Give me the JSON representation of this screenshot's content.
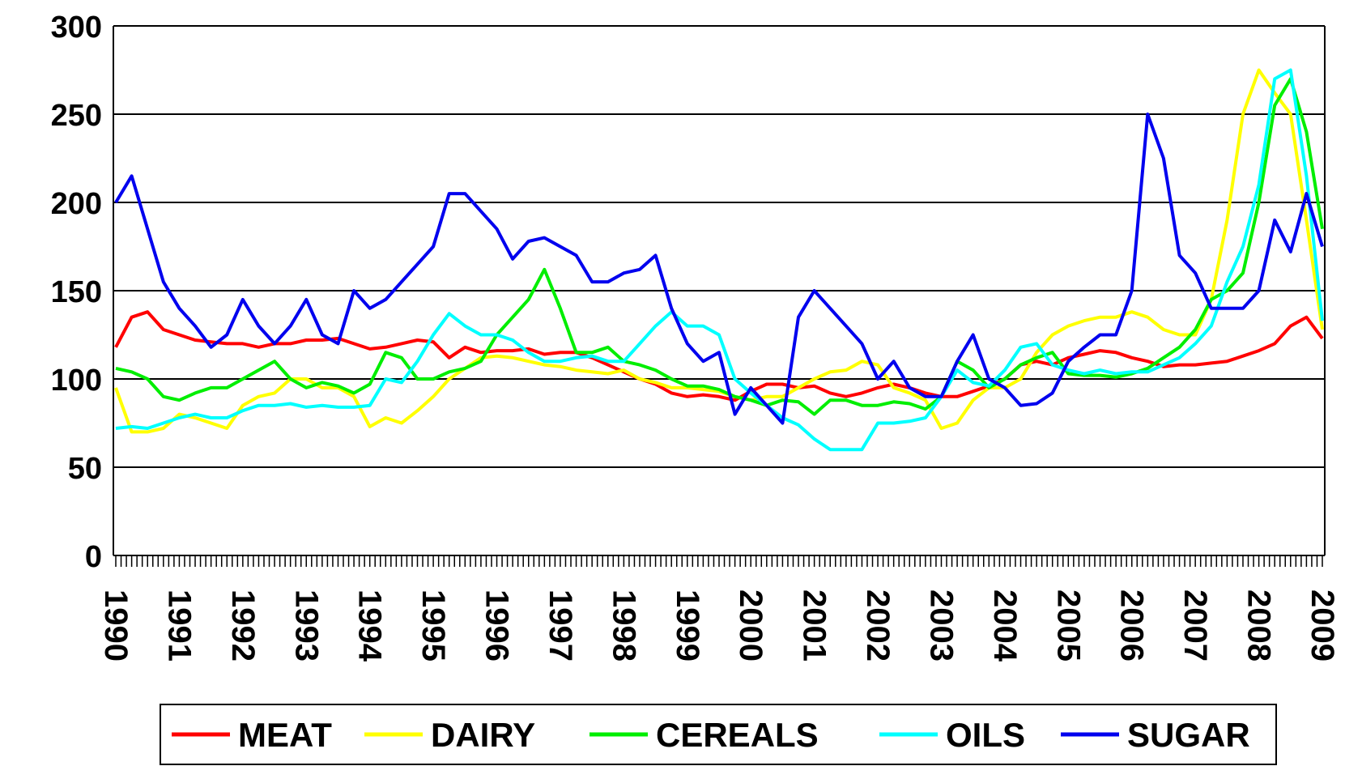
{
  "chart_data": {
    "type": "line",
    "categories": [
      "1990",
      null,
      null,
      null,
      "1991",
      null,
      null,
      null,
      "1992",
      null,
      null,
      null,
      "1993",
      null,
      null,
      null,
      "1994",
      null,
      null,
      null,
      "1995",
      null,
      null,
      null,
      "1996",
      null,
      null,
      null,
      "1997",
      null,
      null,
      null,
      "1998",
      null,
      null,
      null,
      "1999",
      null,
      null,
      null,
      "2000",
      null,
      null,
      null,
      "2001",
      null,
      null,
      null,
      "2002",
      null,
      null,
      null,
      "2003",
      null,
      null,
      null,
      "2004",
      null,
      null,
      null,
      "2005",
      null,
      null,
      null,
      "2006",
      null,
      null,
      null,
      "2007",
      null,
      null,
      null,
      "2008",
      null,
      null,
      null,
      "2009"
    ],
    "series": [
      {
        "name": "MEAT",
        "color": "#ff0000",
        "values": [
          118,
          135,
          138,
          128,
          125,
          122,
          121,
          120,
          120,
          118,
          120,
          120,
          122,
          122,
          123,
          120,
          117,
          118,
          120,
          122,
          121,
          112,
          118,
          115,
          116,
          116,
          117,
          114,
          115,
          115,
          112,
          108,
          104,
          100,
          97,
          92,
          90,
          91,
          90,
          88,
          93,
          97,
          97,
          95,
          96,
          92,
          90,
          92,
          95,
          97,
          95,
          92,
          90,
          90,
          93,
          96,
          100,
          108,
          110,
          108,
          112,
          114,
          116,
          115,
          112,
          110,
          107,
          108,
          108,
          109,
          110,
          113,
          116,
          120,
          130,
          135,
          123
        ]
      },
      {
        "name": "DAIRY",
        "color": "#ffff00",
        "values": [
          95,
          70,
          70,
          72,
          80,
          78,
          75,
          72,
          85,
          90,
          92,
          100,
          100,
          95,
          95,
          90,
          73,
          78,
          75,
          82,
          90,
          100,
          106,
          112,
          113,
          112,
          110,
          108,
          107,
          105,
          104,
          103,
          105,
          100,
          98,
          95,
          95,
          94,
          93,
          90,
          88,
          90,
          90,
          95,
          100,
          104,
          105,
          110,
          108,
          95,
          92,
          88,
          72,
          75,
          88,
          95,
          95,
          100,
          115,
          125,
          130,
          133,
          135,
          135,
          138,
          135,
          128,
          125,
          125,
          145,
          190,
          250,
          275,
          262,
          250,
          190,
          128
        ]
      },
      {
        "name": "CEREALS",
        "color": "#00ee00",
        "values": [
          106,
          104,
          100,
          90,
          88,
          92,
          95,
          95,
          100,
          105,
          110,
          100,
          95,
          98,
          96,
          92,
          97,
          115,
          112,
          100,
          100,
          104,
          106,
          110,
          125,
          135,
          145,
          162,
          140,
          115,
          115,
          118,
          110,
          108,
          105,
          100,
          96,
          96,
          94,
          90,
          88,
          85,
          88,
          87,
          80,
          88,
          88,
          85,
          85,
          87,
          86,
          83,
          90,
          110,
          105,
          95,
          100,
          108,
          112,
          115,
          103,
          102,
          102,
          101,
          103,
          106,
          112,
          118,
          128,
          145,
          150,
          160,
          200,
          255,
          270,
          240,
          185
        ]
      },
      {
        "name": "OILS",
        "color": "#00ffff",
        "values": [
          72,
          73,
          72,
          75,
          78,
          80,
          78,
          78,
          82,
          85,
          85,
          86,
          84,
          85,
          84,
          84,
          85,
          100,
          98,
          110,
          125,
          137,
          130,
          125,
          125,
          122,
          115,
          110,
          110,
          112,
          113,
          110,
          110,
          120,
          130,
          138,
          130,
          130,
          125,
          100,
          92,
          85,
          78,
          74,
          66,
          60,
          60,
          60,
          75,
          75,
          76,
          78,
          90,
          105,
          98,
          96,
          105,
          118,
          120,
          108,
          105,
          103,
          105,
          103,
          104,
          104,
          108,
          112,
          120,
          130,
          155,
          175,
          210,
          270,
          275,
          215,
          133
        ]
      },
      {
        "name": "SUGAR",
        "color": "#0000ee",
        "values": [
          200,
          215,
          185,
          155,
          140,
          130,
          118,
          125,
          145,
          130,
          120,
          130,
          145,
          125,
          120,
          150,
          140,
          145,
          155,
          165,
          175,
          205,
          205,
          195,
          185,
          168,
          178,
          180,
          175,
          170,
          155,
          155,
          160,
          162,
          170,
          140,
          120,
          110,
          115,
          80,
          95,
          85,
          75,
          135,
          150,
          140,
          130,
          120,
          100,
          110,
          95,
          90,
          90,
          110,
          125,
          100,
          95,
          85,
          86,
          92,
          110,
          118,
          125,
          125,
          150,
          250,
          225,
          170,
          160,
          140,
          140,
          140,
          150,
          190,
          172,
          205,
          175
        ]
      }
    ],
    "ylim": [
      0,
      300
    ],
    "yticks": [
      0,
      50,
      100,
      150,
      200,
      250,
      300
    ],
    "grid": true,
    "legend": "bottom"
  }
}
